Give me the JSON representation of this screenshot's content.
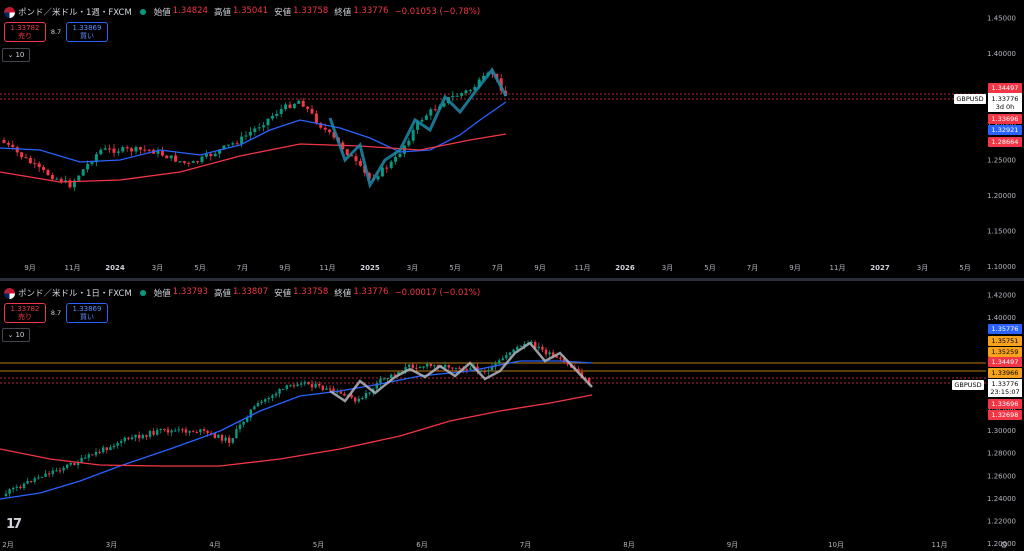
{
  "top": {
    "symbol": "ポンド／米ドル・1週・FXCM",
    "ohlc": [
      {
        "k": "始値",
        "v": "1.34824"
      },
      {
        "k": "高値",
        "v": "1.35041"
      },
      {
        "k": "安値",
        "v": "1.33758"
      },
      {
        "k": "終値",
        "v": "1.33776"
      }
    ],
    "change": "−0.01053 (−0.78%)",
    "sell": {
      "price": "1.33782",
      "label": "売り"
    },
    "spread": "8.7",
    "buy": {
      "price": "1.33869",
      "label": "買い"
    },
    "collapse": "10",
    "symbol_tag": "GBPUSD",
    "last": {
      "price": "1.33776",
      "countdown": "3d 0h"
    },
    "price_labels": [
      {
        "text": "1.34497",
        "color": "#f23645",
        "level": 1.34497
      },
      {
        "text": "1.33696",
        "color": "#f23645",
        "level": 1.33696
      },
      {
        "text": "1.32921",
        "color": "#2962ff",
        "level": 1.32921
      },
      {
        "text": "1.28664",
        "color": "#f23645",
        "level": 1.28664
      }
    ],
    "y_ticks": [
      "1.45000",
      "1.40000",
      "1.35000",
      "1.30000",
      "1.25000",
      "1.20000",
      "1.15000",
      "1.10000"
    ],
    "x_labels": [
      {
        "t": "9月",
        "b": false
      },
      {
        "t": "11月",
        "b": false
      },
      {
        "t": "2024",
        "b": true
      },
      {
        "t": "3月",
        "b": false
      },
      {
        "t": "5月",
        "b": false
      },
      {
        "t": "7月",
        "b": false
      },
      {
        "t": "9月",
        "b": false
      },
      {
        "t": "11月",
        "b": false
      },
      {
        "t": "2025",
        "b": true
      },
      {
        "t": "3月",
        "b": false
      },
      {
        "t": "5月",
        "b": false
      },
      {
        "t": "7月",
        "b": false
      },
      {
        "t": "9月",
        "b": false
      },
      {
        "t": "11月",
        "b": false
      },
      {
        "t": "2026",
        "b": true
      },
      {
        "t": "3月",
        "b": false
      },
      {
        "t": "5月",
        "b": false
      },
      {
        "t": "7月",
        "b": false
      },
      {
        "t": "9月",
        "b": false
      },
      {
        "t": "11月",
        "b": false
      },
      {
        "t": "2027",
        "b": true
      },
      {
        "t": "3月",
        "b": false
      },
      {
        "t": "5月",
        "b": false
      }
    ]
  },
  "bottom": {
    "symbol": "ポンド／米ドル・1日・FXCM",
    "ohlc": [
      {
        "k": "始値",
        "v": "1.33793"
      },
      {
        "k": "高値",
        "v": "1.33807"
      },
      {
        "k": "安値",
        "v": "1.33758"
      },
      {
        "k": "終値",
        "v": "1.33776"
      }
    ],
    "change": "−0.00017 (−0.01%)",
    "sell": {
      "price": "1.33782",
      "label": "売り"
    },
    "spread": "8.7",
    "buy": {
      "price": "1.33869",
      "label": "買い"
    },
    "collapse": "10",
    "symbol_tag": "GBPUSD",
    "last": {
      "price": "1.33776",
      "countdown": "23:15:07"
    },
    "price_labels": [
      {
        "text": "1.35776",
        "color": "#2962ff",
        "level": 1.35776
      },
      {
        "text": "1.35751",
        "color": "#f7a21b",
        "level": 1.35751
      },
      {
        "text": "1.35259",
        "color": "#f7a21b",
        "level": 1.35259
      },
      {
        "text": "1.34497",
        "color": "#f23645",
        "level": 1.34497
      },
      {
        "text": "1.33966",
        "color": "#f7a21b",
        "level": 1.33966
      },
      {
        "text": "1.33696",
        "color": "#f23645",
        "level": 1.33696
      },
      {
        "text": "1.32698",
        "color": "#f23645",
        "level": 1.32698
      }
    ],
    "y_ticks": [
      "1.42000",
      "1.40000",
      "1.38000",
      "1.36000",
      "1.34000",
      "1.32000",
      "1.30000",
      "1.28000",
      "1.26000",
      "1.24000",
      "1.22000",
      "1.20000"
    ],
    "x_labels": [
      {
        "t": "2月",
        "b": false
      },
      {
        "t": "3月",
        "b": false
      },
      {
        "t": "4月",
        "b": false
      },
      {
        "t": "5月",
        "b": false
      },
      {
        "t": "6月",
        "b": false
      },
      {
        "t": "7月",
        "b": false
      },
      {
        "t": "8月",
        "b": false
      },
      {
        "t": "9月",
        "b": false
      },
      {
        "t": "10月",
        "b": false
      },
      {
        "t": "11月",
        "b": false
      }
    ]
  }
}
